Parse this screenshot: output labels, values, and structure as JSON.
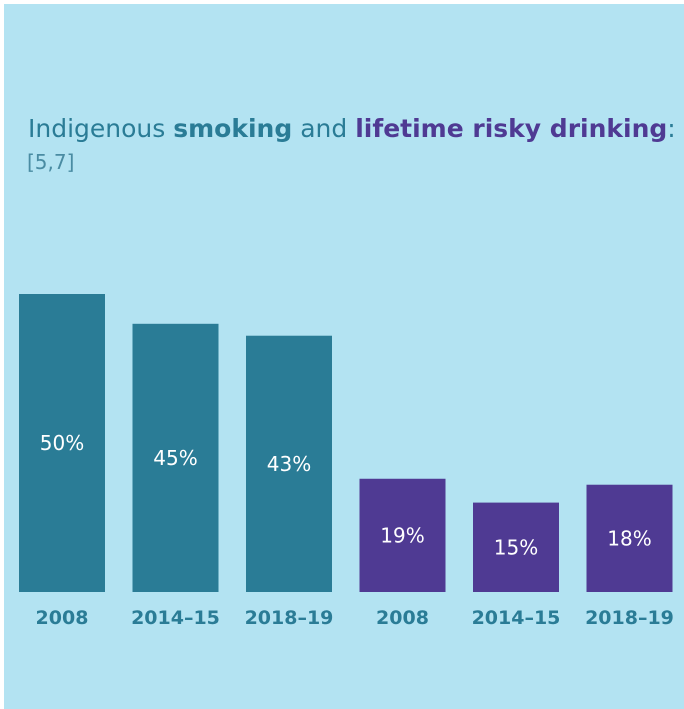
{
  "title": {
    "part1": "Indigenous ",
    "smoking": "smoking",
    "part2": " and ",
    "drinking": "lifetime risky drinking",
    "part3": ":"
  },
  "subtitle": "[5,7]",
  "colors": {
    "background": "#b3e3f2",
    "smoking": "#2a7c96",
    "drinking": "#4f3a93",
    "label_text": "#2a7c96",
    "value_text": "#ffffff"
  },
  "chart_data": {
    "type": "bar",
    "categories": [
      "2008",
      "2014–15",
      "2018–19",
      "2008",
      "2014–15",
      "2018–19"
    ],
    "series": [
      {
        "name": "smoking",
        "values": [
          50,
          45,
          43,
          null,
          null,
          null
        ]
      },
      {
        "name": "lifetime risky drinking",
        "values": [
          null,
          null,
          null,
          19,
          15,
          18
        ]
      }
    ],
    "value_labels": [
      "50%",
      "45%",
      "43%",
      "19%",
      "15%",
      "18%"
    ],
    "ylim": [
      0,
      50
    ],
    "grid": false,
    "legend": "none"
  }
}
